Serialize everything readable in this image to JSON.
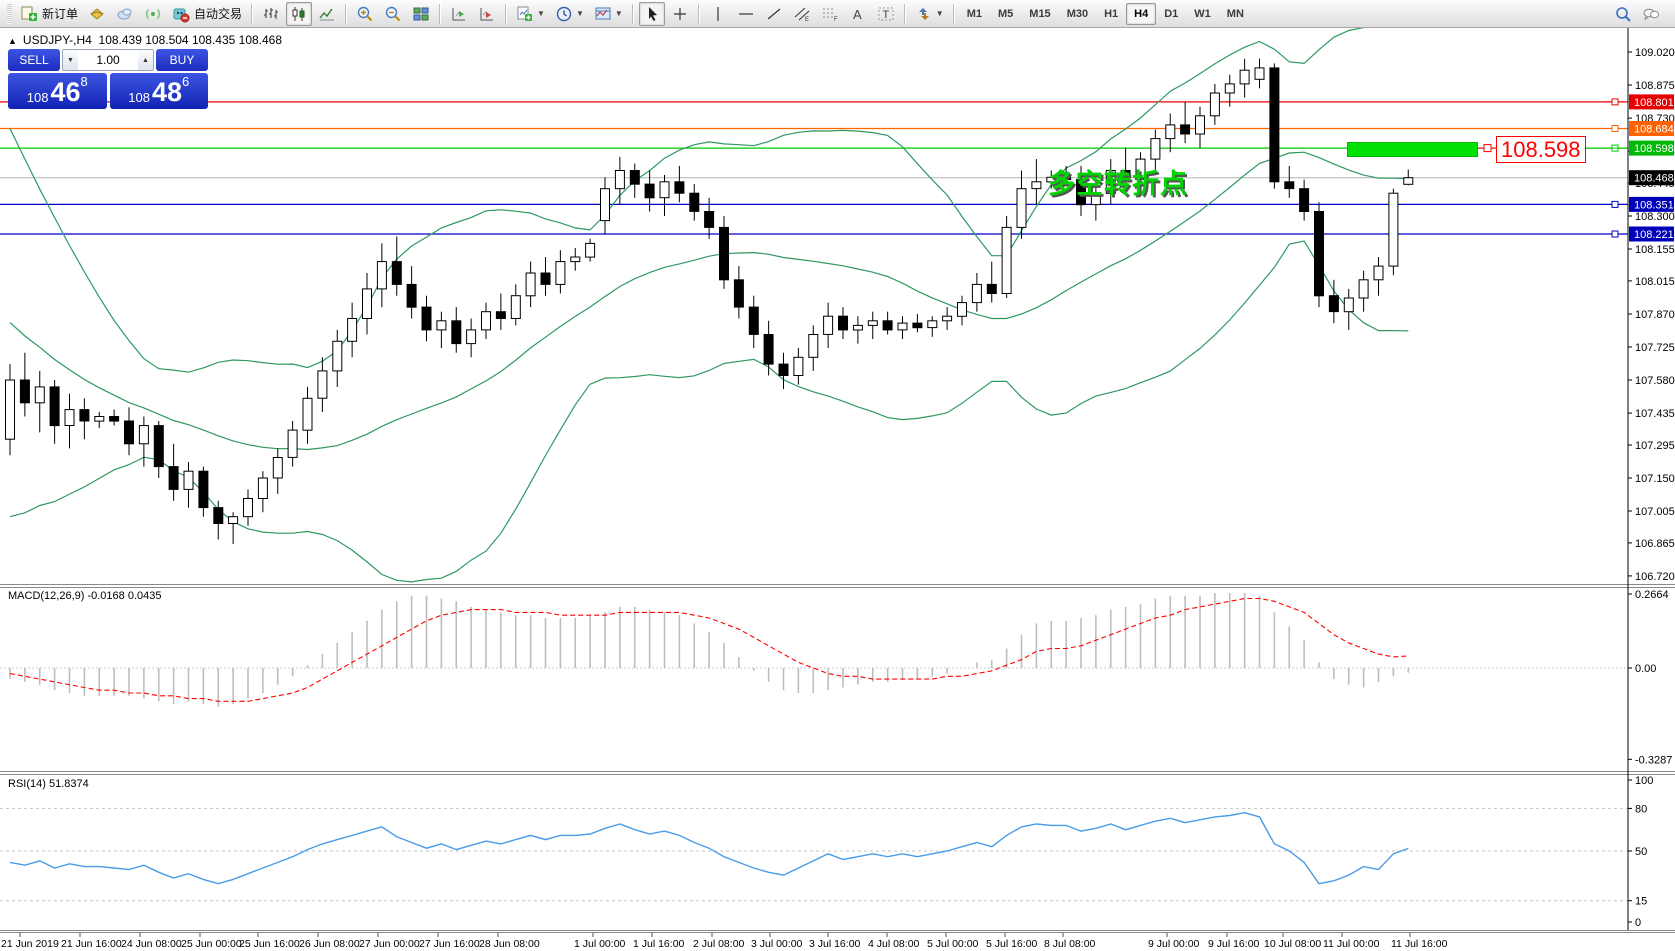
{
  "toolbar": {
    "groups": [
      {
        "items": [
          {
            "name": "new-order-button",
            "icon": "new-order",
            "label": "新订单",
            "interactable": true
          },
          {
            "name": "wallet-icon",
            "icon": "wallet",
            "interactable": true
          },
          {
            "name": "cloud-icon",
            "icon": "cloud",
            "interactable": true
          },
          {
            "name": "signal-icon",
            "icon": "signal",
            "interactable": true
          },
          {
            "name": "autotrading-button",
            "icon": "autotrading",
            "label": "自动交易",
            "interactable": true
          }
        ]
      },
      {
        "items": [
          {
            "name": "bar-chart-button",
            "icon": "bar-chart"
          },
          {
            "name": "candlestick-chart-button",
            "icon": "candlestick",
            "active": true
          },
          {
            "name": "line-chart-button",
            "icon": "line-chart"
          }
        ]
      },
      {
        "items": [
          {
            "name": "zoom-in-button",
            "icon": "zoom-in"
          },
          {
            "name": "zoom-out-button",
            "icon": "zoom-out"
          },
          {
            "name": "tile-windows-button",
            "icon": "tile-windows"
          }
        ]
      },
      {
        "items": [
          {
            "name": "auto-scroll-button",
            "icon": "auto-scroll"
          },
          {
            "name": "chart-shift-button",
            "icon": "chart-shift"
          }
        ]
      },
      {
        "items": [
          {
            "name": "indicators-button",
            "icon": "indicators",
            "dropdown": true
          },
          {
            "name": "periods-button",
            "icon": "periods",
            "dropdown": true
          },
          {
            "name": "templates-button",
            "icon": "templates",
            "dropdown": true
          }
        ]
      },
      {
        "items": [
          {
            "name": "cursor-button",
            "icon": "cursor",
            "active": true
          },
          {
            "name": "crosshair-button",
            "icon": "crosshair"
          }
        ]
      },
      {
        "items": [
          {
            "name": "vertical-line-button",
            "icon": "vline"
          },
          {
            "name": "horizontal-line-button",
            "icon": "hline"
          },
          {
            "name": "trendline-button",
            "icon": "trendline"
          },
          {
            "name": "equidistant-channel-button",
            "icon": "channel"
          },
          {
            "name": "fibonacci-button",
            "icon": "fibonacci"
          },
          {
            "name": "text-button",
            "icon": "text"
          },
          {
            "name": "text-label-button",
            "icon": "text-label"
          }
        ]
      },
      {
        "items": [
          {
            "name": "arrows-button",
            "icon": "arrows",
            "dropdown": true
          }
        ]
      }
    ],
    "timeframes": [
      {
        "label": "M1"
      },
      {
        "label": "M5"
      },
      {
        "label": "M15"
      },
      {
        "label": "M30"
      },
      {
        "label": "H1"
      },
      {
        "label": "H4",
        "active": true
      },
      {
        "label": "D1"
      },
      {
        "label": "W1"
      },
      {
        "label": "MN"
      }
    ],
    "right_icons": [
      {
        "name": "search-icon",
        "icon": "search"
      },
      {
        "name": "chat-icon",
        "icon": "chat"
      }
    ]
  },
  "chart": {
    "collapse_arrow": "▲",
    "title_symbol": "USDJPY-,H4",
    "title_ohlc": "108.439 108.504 108.435 108.468",
    "trade_widget": {
      "sell_label": "SELL",
      "buy_label": "BUY",
      "volume": "1.00",
      "sell_price_small": "108",
      "sell_price_big": "46",
      "sell_price_sup": "8",
      "buy_price_small": "108",
      "buy_price_big": "48",
      "buy_price_sup": "6"
    },
    "macd_label": "MACD(12,26,9) -0.0168 0.0435",
    "rsi_label": "RSI(14) 51.8374",
    "annotation_text": "多空转折点",
    "annotation_color": "#00d400",
    "callout_text": "108.598",
    "callout_color": "#ff0000"
  },
  "chart_data": {
    "type": "candlestick",
    "symbol": "USDJPY-",
    "timeframe": "H4",
    "current_bar": {
      "open": 108.439,
      "high": 108.504,
      "low": 108.435,
      "close": 108.468
    },
    "price_axis_ticks": [
      "109.020",
      "108.875",
      "108.730",
      "108.585",
      "108.445",
      "108.300",
      "108.155",
      "108.015",
      "107.870",
      "107.725",
      "107.580",
      "107.435",
      "107.295",
      "107.150",
      "107.005",
      "106.865",
      "106.720"
    ],
    "levels": [
      {
        "price": 108.801,
        "label": "108.801",
        "color": "#ee0000",
        "badge": "#e60000"
      },
      {
        "price": 108.684,
        "label": "108.684",
        "color": "#ff6600",
        "badge": "#ff6000"
      },
      {
        "price": 108.598,
        "label": "108.598",
        "color": "#00cc00",
        "badge": "#00b807"
      },
      {
        "price": 108.351,
        "label": "108.351",
        "color": "#0000c8",
        "badge": "#0000bb"
      },
      {
        "price": 108.221,
        "label": "108.221",
        "color": "#0000c8",
        "badge": "#0000bb"
      }
    ],
    "current_price": {
      "price": 108.468,
      "label": "108.468",
      "line_color": "#b4b4b4",
      "badge": "#000000"
    },
    "highlight_rect": {
      "price_top": 108.627,
      "price_bottom": 108.562
    },
    "bollinger": {
      "period": 20,
      "deviation": 2,
      "color": "#2e9960"
    },
    "pre_closes": [
      108.75,
      108.65,
      108.55,
      108.45,
      108.35,
      108.25,
      108.15,
      108.05,
      107.95,
      107.85,
      107.75,
      107.65,
      107.55,
      107.5,
      107.45,
      107.42,
      107.4,
      107.38,
      107.36,
      107.35
    ],
    "candles": [
      [
        107.32,
        107.65,
        107.25,
        107.58
      ],
      [
        107.58,
        107.7,
        107.42,
        107.48
      ],
      [
        107.48,
        107.62,
        107.35,
        107.55
      ],
      [
        107.55,
        107.58,
        107.3,
        107.38
      ],
      [
        107.38,
        107.52,
        107.28,
        107.45
      ],
      [
        107.45,
        107.5,
        107.32,
        107.4
      ],
      [
        107.4,
        107.44,
        107.37,
        107.42
      ],
      [
        107.42,
        107.45,
        107.38,
        107.4
      ],
      [
        107.4,
        107.46,
        107.25,
        107.3
      ],
      [
        107.3,
        107.42,
        107.2,
        107.38
      ],
      [
        107.38,
        107.4,
        107.15,
        107.2
      ],
      [
        107.2,
        107.3,
        107.05,
        107.1
      ],
      [
        107.1,
        107.22,
        107.02,
        107.18
      ],
      [
        107.18,
        107.2,
        106.98,
        107.02
      ],
      [
        107.02,
        107.05,
        106.88,
        106.95
      ],
      [
        106.95,
        107.0,
        106.86,
        106.98
      ],
      [
        106.98,
        107.1,
        106.94,
        107.06
      ],
      [
        107.06,
        107.18,
        107.0,
        107.15
      ],
      [
        107.15,
        107.28,
        107.08,
        107.24
      ],
      [
        107.24,
        107.4,
        107.2,
        107.36
      ],
      [
        107.36,
        107.55,
        107.3,
        107.5
      ],
      [
        107.5,
        107.68,
        107.44,
        107.62
      ],
      [
        107.62,
        107.8,
        107.55,
        107.75
      ],
      [
        107.75,
        107.92,
        107.68,
        107.85
      ],
      [
        107.85,
        108.05,
        107.78,
        107.98
      ],
      [
        107.98,
        108.18,
        107.9,
        108.1
      ],
      [
        108.1,
        108.21,
        107.95,
        108.0
      ],
      [
        108.0,
        108.08,
        107.85,
        107.9
      ],
      [
        107.9,
        107.95,
        107.75,
        107.8
      ],
      [
        107.8,
        107.88,
        107.72,
        107.84
      ],
      [
        107.84,
        107.9,
        107.7,
        107.74
      ],
      [
        107.74,
        107.85,
        107.68,
        107.8
      ],
      [
        107.8,
        107.92,
        107.76,
        107.88
      ],
      [
        107.88,
        107.96,
        107.8,
        107.85
      ],
      [
        107.85,
        108.0,
        107.82,
        107.95
      ],
      [
        107.95,
        108.1,
        107.9,
        108.05
      ],
      [
        108.05,
        108.12,
        107.95,
        108.0
      ],
      [
        108.0,
        108.15,
        107.96,
        108.1
      ],
      [
        108.1,
        108.16,
        108.06,
        108.12
      ],
      [
        108.12,
        108.2,
        108.1,
        108.18
      ],
      [
        108.28,
        108.47,
        108.22,
        108.42
      ],
      [
        108.42,
        108.56,
        108.35,
        108.5
      ],
      [
        108.5,
        108.53,
        108.38,
        108.44
      ],
      [
        108.44,
        108.5,
        108.32,
        108.38
      ],
      [
        108.38,
        108.48,
        108.3,
        108.45
      ],
      [
        108.45,
        108.52,
        108.36,
        108.4
      ],
      [
        108.4,
        108.44,
        108.28,
        108.32
      ],
      [
        108.32,
        108.38,
        108.2,
        108.25
      ],
      [
        108.25,
        108.3,
        107.98,
        108.02
      ],
      [
        108.02,
        108.08,
        107.85,
        107.9
      ],
      [
        107.9,
        107.95,
        107.72,
        107.78
      ],
      [
        107.78,
        107.84,
        107.6,
        107.65
      ],
      [
        107.65,
        107.7,
        107.54,
        107.6
      ],
      [
        107.6,
        107.72,
        107.56,
        107.68
      ],
      [
        107.68,
        107.82,
        107.62,
        107.78
      ],
      [
        107.78,
        107.92,
        107.72,
        107.86
      ],
      [
        107.86,
        107.9,
        107.76,
        107.8
      ],
      [
        107.8,
        107.86,
        107.74,
        107.82
      ],
      [
        107.82,
        107.88,
        107.76,
        107.84
      ],
      [
        107.84,
        107.88,
        107.78,
        107.8
      ],
      [
        107.8,
        107.86,
        107.76,
        107.83
      ],
      [
        107.83,
        107.87,
        107.79,
        107.81
      ],
      [
        107.81,
        107.86,
        107.77,
        107.84
      ],
      [
        107.84,
        107.9,
        107.8,
        107.86
      ],
      [
        107.86,
        107.95,
        107.82,
        107.92
      ],
      [
        107.92,
        108.05,
        107.88,
        108.0
      ],
      [
        108.0,
        108.1,
        107.92,
        107.96
      ],
      [
        107.96,
        108.3,
        107.94,
        108.25
      ],
      [
        108.25,
        108.5,
        108.2,
        108.42
      ],
      [
        108.42,
        108.55,
        108.35,
        108.45
      ],
      [
        108.45,
        108.5,
        108.42,
        108.47
      ],
      [
        108.47,
        108.52,
        108.44,
        108.46
      ],
      [
        108.46,
        108.52,
        108.3,
        108.35
      ],
      [
        108.35,
        108.45,
        108.28,
        108.4
      ],
      [
        108.4,
        108.55,
        108.35,
        108.5
      ],
      [
        108.5,
        108.6,
        108.42,
        108.46
      ],
      [
        108.46,
        108.58,
        108.4,
        108.55
      ],
      [
        108.55,
        108.68,
        108.5,
        108.64
      ],
      [
        108.64,
        108.75,
        108.58,
        108.7
      ],
      [
        108.7,
        108.8,
        108.62,
        108.66
      ],
      [
        108.66,
        108.78,
        108.6,
        108.74
      ],
      [
        108.74,
        108.88,
        108.7,
        108.84
      ],
      [
        108.84,
        108.92,
        108.78,
        108.88
      ],
      [
        108.88,
        108.99,
        108.82,
        108.94
      ],
      [
        108.9,
        108.99,
        108.86,
        108.95
      ],
      [
        108.95,
        108.97,
        108.42,
        108.45
      ],
      [
        108.45,
        108.52,
        108.38,
        108.42
      ],
      [
        108.42,
        108.46,
        108.28,
        108.32
      ],
      [
        108.32,
        108.36,
        107.9,
        107.95
      ],
      [
        107.95,
        108.02,
        107.83,
        107.88
      ],
      [
        107.88,
        107.98,
        107.8,
        107.94
      ],
      [
        107.94,
        108.06,
        107.88,
        108.02
      ],
      [
        108.02,
        108.12,
        107.95,
        108.08
      ],
      [
        108.08,
        108.42,
        108.04,
        108.4
      ],
      [
        108.439,
        108.504,
        108.435,
        108.468
      ]
    ],
    "macd": {
      "title": "MACD(12,26,9)",
      "value": -0.0168,
      "signal_value": 0.0435,
      "axis_ticks": [
        {
          "v": 0.2664,
          "label": "0.2664"
        },
        {
          "v": 0,
          "label": "0.00"
        },
        {
          "v": -0.3287,
          "label": "-0.3287"
        }
      ],
      "bar_color": "#bdbdbd",
      "signal_color": "#ff0000",
      "main": [
        -0.04,
        -0.05,
        -0.06,
        -0.08,
        -0.09,
        -0.1,
        -0.1,
        -0.1,
        -0.1,
        -0.11,
        -0.12,
        -0.13,
        -0.12,
        -0.13,
        -0.14,
        -0.13,
        -0.11,
        -0.09,
        -0.06,
        -0.03,
        0.01,
        0.05,
        0.09,
        0.13,
        0.17,
        0.21,
        0.24,
        0.26,
        0.26,
        0.25,
        0.24,
        0.22,
        0.21,
        0.2,
        0.19,
        0.19,
        0.18,
        0.18,
        0.18,
        0.19,
        0.2,
        0.22,
        0.22,
        0.21,
        0.2,
        0.19,
        0.16,
        0.13,
        0.09,
        0.04,
        -0.01,
        -0.05,
        -0.08,
        -0.09,
        -0.09,
        -0.08,
        -0.07,
        -0.06,
        -0.05,
        -0.05,
        -0.04,
        -0.04,
        -0.03,
        -0.02,
        0.0,
        0.02,
        0.03,
        0.07,
        0.12,
        0.16,
        0.17,
        0.17,
        0.18,
        0.19,
        0.21,
        0.22,
        0.23,
        0.25,
        0.26,
        0.26,
        0.26,
        0.27,
        0.27,
        0.27,
        0.26,
        0.2,
        0.15,
        0.1,
        0.02,
        -0.04,
        -0.06,
        -0.07,
        -0.05,
        -0.03,
        -0.0168
      ],
      "signal": [
        -0.02,
        -0.03,
        -0.04,
        -0.05,
        -0.06,
        -0.07,
        -0.08,
        -0.08,
        -0.09,
        -0.09,
        -0.1,
        -0.1,
        -0.11,
        -0.11,
        -0.12,
        -0.12,
        -0.12,
        -0.11,
        -0.1,
        -0.09,
        -0.07,
        -0.04,
        -0.01,
        0.02,
        0.05,
        0.08,
        0.11,
        0.14,
        0.17,
        0.19,
        0.2,
        0.21,
        0.21,
        0.21,
        0.2,
        0.2,
        0.2,
        0.19,
        0.19,
        0.19,
        0.19,
        0.2,
        0.2,
        0.2,
        0.2,
        0.2,
        0.19,
        0.18,
        0.16,
        0.14,
        0.11,
        0.08,
        0.05,
        0.02,
        0.0,
        -0.02,
        -0.03,
        -0.03,
        -0.04,
        -0.04,
        -0.04,
        -0.04,
        -0.04,
        -0.03,
        -0.03,
        -0.02,
        -0.01,
        0.01,
        0.03,
        0.06,
        0.07,
        0.07,
        0.08,
        0.1,
        0.12,
        0.14,
        0.16,
        0.18,
        0.19,
        0.21,
        0.22,
        0.23,
        0.24,
        0.25,
        0.25,
        0.24,
        0.22,
        0.2,
        0.16,
        0.12,
        0.09,
        0.07,
        0.05,
        0.04,
        0.0435
      ]
    },
    "rsi": {
      "title": "RSI(14)",
      "value": 51.8374,
      "color": "#4a9ce8",
      "axis_ticks": [
        {
          "v": 100,
          "label": "100"
        },
        {
          "v": 80,
          "label": "80"
        },
        {
          "v": 50,
          "label": "50"
        },
        {
          "v": 15,
          "label": "15"
        },
        {
          "v": 0,
          "label": "0"
        }
      ],
      "level_lines": [
        80,
        50,
        15
      ],
      "values": [
        42,
        40,
        43,
        38,
        41,
        39,
        39,
        38,
        37,
        40,
        35,
        31,
        34,
        30,
        27,
        30,
        34,
        38,
        42,
        46,
        51,
        55,
        58,
        61,
        64,
        67,
        60,
        56,
        52,
        55,
        51,
        54,
        57,
        55,
        58,
        61,
        58,
        61,
        61,
        62,
        66,
        69,
        65,
        62,
        64,
        61,
        56,
        52,
        46,
        42,
        38,
        35,
        33,
        38,
        43,
        48,
        44,
        46,
        48,
        46,
        48,
        46,
        48,
        50,
        53,
        56,
        53,
        61,
        67,
        69,
        68,
        68,
        64,
        66,
        69,
        65,
        68,
        71,
        73,
        70,
        72,
        74,
        75,
        77,
        74,
        55,
        50,
        42,
        27,
        29,
        33,
        39,
        37,
        48,
        51.84
      ]
    },
    "time_labels": [
      "21 Jun 2019",
      "21 Jun 16:00",
      "24 Jun 08:00",
      "25 Jun 00:00",
      "25 Jun 16:00",
      "26 Jun 08:00",
      "27 Jun 00:00",
      "27 Jun 16:00",
      "28 Jun 08:00",
      "1 Jul 00:00",
      "1 Jul 16:00",
      "2 Jul 08:00",
      "3 Jul 00:00",
      "3 Jul 16:00",
      "4 Jul 08:00",
      "5 Jul 00:00",
      "5 Jul 16:00",
      "8 Jul 08:00",
      "9 Jul 00:00",
      "9 Jul 16:00",
      "10 Jul 08:00",
      "11 Jul 00:00",
      "11 Jul 16:00"
    ]
  }
}
